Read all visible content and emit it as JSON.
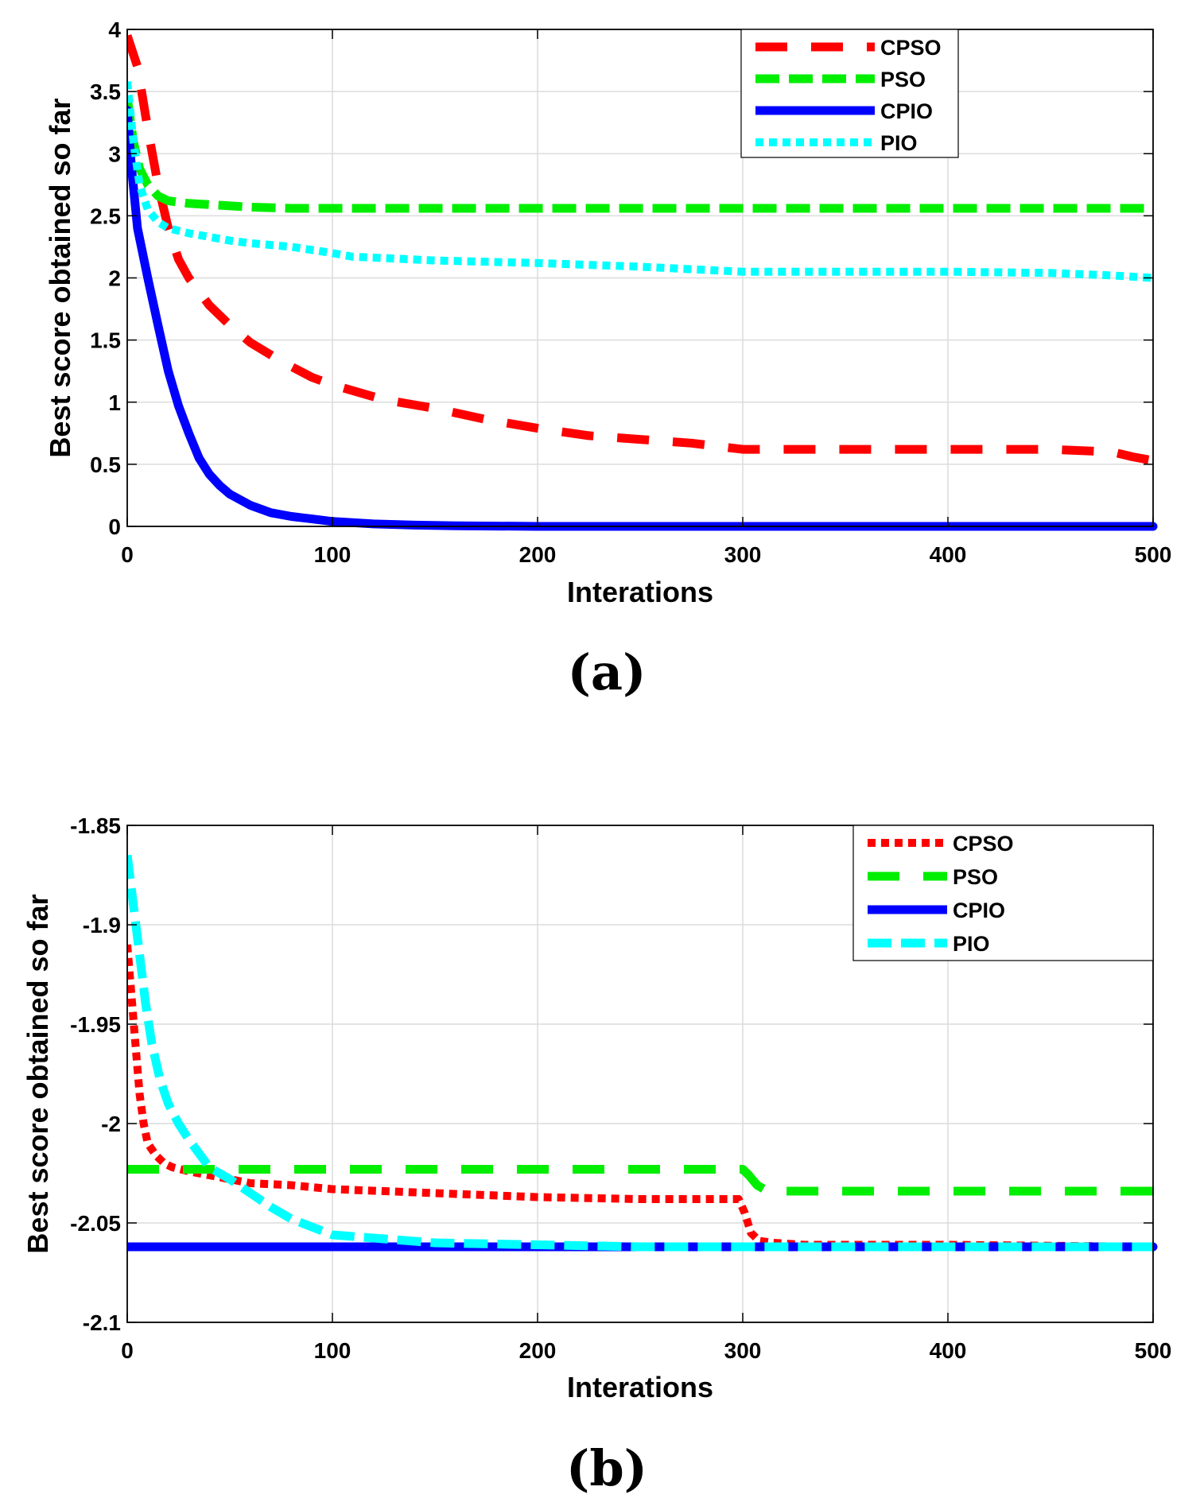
{
  "chart_data": [
    {
      "panel": "a",
      "caption": "(a)",
      "type": "line",
      "xlabel": "Interations",
      "ylabel": "Best score obtained so far",
      "xlim": [
        0,
        500
      ],
      "ylim": [
        0,
        4
      ],
      "xticks": [
        0,
        100,
        200,
        300,
        400,
        500
      ],
      "yticks": [
        0,
        0.5,
        1,
        1.5,
        2,
        2.5,
        3,
        3.5,
        4
      ],
      "ytick_labels": [
        "0",
        "0.5",
        "1",
        "1.5",
        "2",
        "2.5",
        "3",
        "3.5",
        "4"
      ],
      "grid": true,
      "legend_position": "top-right",
      "series": [
        {
          "name": "CPSO",
          "color": "#ff0000",
          "style": "long-dash",
          "x": [
            0,
            5,
            10,
            15,
            20,
            25,
            30,
            40,
            50,
            60,
            75,
            90,
            100,
            125,
            150,
            175,
            200,
            225,
            250,
            275,
            300,
            350,
            400,
            450,
            480,
            490,
            500
          ],
          "y": [
            3.95,
            3.7,
            3.2,
            2.75,
            2.4,
            2.15,
            2.0,
            1.78,
            1.62,
            1.48,
            1.33,
            1.2,
            1.14,
            1.02,
            0.95,
            0.86,
            0.79,
            0.73,
            0.7,
            0.67,
            0.62,
            0.62,
            0.62,
            0.62,
            0.6,
            0.56,
            0.53
          ]
        },
        {
          "name": "PSO",
          "color": "#00ee00",
          "style": "dash",
          "x": [
            0,
            3,
            6,
            10,
            15,
            20,
            25,
            30,
            40,
            50,
            60,
            80,
            100,
            200,
            300,
            400,
            500
          ],
          "y": [
            3.45,
            3.1,
            2.88,
            2.75,
            2.66,
            2.62,
            2.61,
            2.6,
            2.59,
            2.58,
            2.57,
            2.56,
            2.56,
            2.56,
            2.56,
            2.56,
            2.56
          ]
        },
        {
          "name": "CPIO",
          "color": "#0000ff",
          "style": "solid",
          "x": [
            0,
            2,
            5,
            10,
            15,
            20,
            25,
            30,
            35,
            40,
            45,
            50,
            60,
            70,
            80,
            90,
            100,
            120,
            140,
            160,
            200,
            300,
            400,
            500
          ],
          "y": [
            3.35,
            2.9,
            2.4,
            2.0,
            1.62,
            1.25,
            0.97,
            0.75,
            0.55,
            0.42,
            0.33,
            0.26,
            0.17,
            0.11,
            0.08,
            0.06,
            0.04,
            0.02,
            0.01,
            0.005,
            0.0,
            0.0,
            0.0,
            0.0
          ]
        },
        {
          "name": "PIO",
          "color": "#00ffff",
          "style": "dot",
          "x": [
            0,
            3,
            6,
            10,
            15,
            20,
            30,
            40,
            50,
            60,
            80,
            100,
            110,
            125,
            150,
            200,
            250,
            275,
            300,
            350,
            400,
            450,
            480,
            500
          ],
          "y": [
            3.58,
            3.1,
            2.75,
            2.55,
            2.45,
            2.4,
            2.36,
            2.33,
            2.3,
            2.28,
            2.25,
            2.2,
            2.17,
            2.16,
            2.14,
            2.12,
            2.09,
            2.07,
            2.05,
            2.05,
            2.05,
            2.04,
            2.02,
            2.0
          ]
        }
      ]
    },
    {
      "panel": "b",
      "caption": "(b)",
      "type": "line",
      "xlabel": "Interations",
      "ylabel": "Best score obtained so far",
      "xlim": [
        0,
        500
      ],
      "ylim": [
        -2.1,
        -1.85
      ],
      "xticks": [
        0,
        100,
        200,
        300,
        400,
        500
      ],
      "yticks": [
        -2.1,
        -2.05,
        -2.0,
        -1.95,
        -1.9,
        -1.85
      ],
      "ytick_labels": [
        "-2.1",
        "-2.05",
        "-2",
        "-1.95",
        "-1.9",
        "-1.85"
      ],
      "grid": true,
      "legend_position": "top-right",
      "series": [
        {
          "name": "CPSO",
          "color": "#ff0000",
          "style": "dot",
          "x": [
            0,
            2,
            4,
            6,
            8,
            10,
            14,
            18,
            22,
            26,
            30,
            40,
            50,
            60,
            80,
            100,
            150,
            200,
            250,
            298,
            301,
            304,
            308,
            315,
            330,
            400,
            500
          ],
          "y": [
            -1.91,
            -1.935,
            -1.96,
            -1.985,
            -2.0,
            -2.01,
            -2.016,
            -2.02,
            -2.022,
            -2.023,
            -2.024,
            -2.026,
            -2.028,
            -2.03,
            -2.031,
            -2.033,
            -2.035,
            -2.037,
            -2.038,
            -2.038,
            -2.045,
            -2.055,
            -2.059,
            -2.06,
            -2.061,
            -2.061,
            -2.062
          ]
        },
        {
          "name": "PSO",
          "color": "#00ee00",
          "style": "long-dash",
          "x": [
            0,
            100,
            200,
            300,
            303,
            307,
            312,
            400,
            500
          ],
          "y": [
            -2.023,
            -2.023,
            -2.023,
            -2.023,
            -2.026,
            -2.031,
            -2.034,
            -2.034,
            -2.034
          ]
        },
        {
          "name": "CPIO",
          "color": "#0000ff",
          "style": "solid",
          "x": [
            0,
            100,
            200,
            300,
            400,
            500
          ],
          "y": [
            -2.062,
            -2.062,
            -2.062,
            -2.062,
            -2.062,
            -2.062
          ]
        },
        {
          "name": "PIO",
          "color": "#00ffff",
          "style": "dash",
          "x": [
            0,
            3,
            6,
            9,
            12,
            16,
            20,
            25,
            30,
            35,
            40,
            50,
            60,
            70,
            80,
            90,
            100,
            125,
            150,
            200,
            250,
            300,
            400,
            500
          ],
          "y": [
            -1.865,
            -1.89,
            -1.915,
            -1.94,
            -1.96,
            -1.978,
            -1.99,
            -2.0,
            -2.008,
            -2.015,
            -2.022,
            -2.028,
            -2.035,
            -2.042,
            -2.048,
            -2.052,
            -2.056,
            -2.058,
            -2.06,
            -2.061,
            -2.062,
            -2.062,
            -2.062,
            -2.062
          ]
        }
      ]
    }
  ]
}
